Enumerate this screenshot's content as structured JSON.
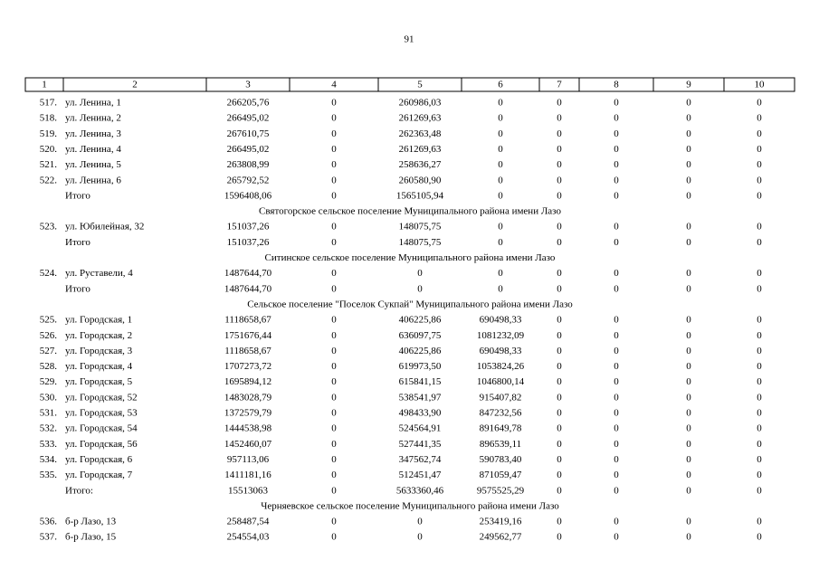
{
  "page_number": "91",
  "table": {
    "header": [
      "1",
      "2",
      "3",
      "4",
      "5",
      "6",
      "7",
      "8",
      "9",
      "10"
    ],
    "rows": [
      [
        "517.",
        "ул. Ленина, 1",
        "266205,76",
        "0",
        "260986,03",
        "0",
        "0",
        "0",
        "0",
        "0"
      ],
      [
        "518.",
        "ул. Ленина, 2",
        "266495,02",
        "0",
        "261269,63",
        "0",
        "0",
        "0",
        "0",
        "0"
      ],
      [
        "519.",
        "ул. Ленина, 3",
        "267610,75",
        "0",
        "262363,48",
        "0",
        "0",
        "0",
        "0",
        "0"
      ],
      [
        "520.",
        "ул. Ленина, 4",
        "266495,02",
        "0",
        "261269,63",
        "0",
        "0",
        "0",
        "0",
        "0"
      ],
      [
        "521.",
        "ул. Ленина, 5",
        "263808,99",
        "0",
        "258636,27",
        "0",
        "0",
        "0",
        "0",
        "0"
      ],
      [
        "522.",
        "ул. Ленина, 6",
        "265792,52",
        "0",
        "260580,90",
        "0",
        "0",
        "0",
        "0",
        "0"
      ],
      [
        null,
        "Итого",
        "1596408,06",
        "0",
        "1565105,94",
        "0",
        "0",
        "0",
        "0",
        "0"
      ],
      {
        "section": "Святогорское сельское поселение Муниципального района имени Лазо"
      },
      [
        "523.",
        "ул. Юбилейная, 32",
        "151037,26",
        "0",
        "148075,75",
        "0",
        "0",
        "0",
        "0",
        "0"
      ],
      [
        null,
        "Итого",
        "151037,26",
        "0",
        "148075,75",
        "0",
        "0",
        "0",
        "0",
        "0"
      ],
      {
        "section": "Ситинское сельское поселение Муниципального района имени Лазо"
      },
      [
        "524.",
        "ул. Руставели, 4",
        "1487644,70",
        "0",
        "0",
        "0",
        "0",
        "0",
        "0",
        "0"
      ],
      [
        null,
        "Итого",
        "1487644,70",
        "0",
        "0",
        "0",
        "0",
        "0",
        "0",
        "0"
      ],
      {
        "section": "Сельское поселение \"Поселок Сукпай\" Муниципального района имени Лазо"
      },
      [
        "525.",
        "ул. Городская, 1",
        "1118658,67",
        "0",
        "406225,86",
        "690498,33",
        "0",
        "0",
        "0",
        "0"
      ],
      [
        "526.",
        "ул. Городская, 2",
        "1751676,44",
        "0",
        "636097,75",
        "1081232,09",
        "0",
        "0",
        "0",
        "0"
      ],
      [
        "527.",
        "ул. Городская, 3",
        "1118658,67",
        "0",
        "406225,86",
        "690498,33",
        "0",
        "0",
        "0",
        "0"
      ],
      [
        "528.",
        "ул. Городская, 4",
        "1707273,72",
        "0",
        "619973,50",
        "1053824,26",
        "0",
        "0",
        "0",
        "0"
      ],
      [
        "529.",
        "ул. Городская, 5",
        "1695894,12",
        "0",
        "615841,15",
        "1046800,14",
        "0",
        "0",
        "0",
        "0"
      ],
      [
        "530.",
        "ул. Городская, 52",
        "1483028,79",
        "0",
        "538541,97",
        "915407,82",
        "0",
        "0",
        "0",
        "0"
      ],
      [
        "531.",
        "ул. Городская, 53",
        "1372579,79",
        "0",
        "498433,90",
        "847232,56",
        "0",
        "0",
        "0",
        "0"
      ],
      [
        "532.",
        "ул. Городская, 54",
        "1444538,98",
        "0",
        "524564,91",
        "891649,78",
        "0",
        "0",
        "0",
        "0"
      ],
      [
        "533.",
        "ул. Городская, 56",
        "1452460,07",
        "0",
        "527441,35",
        "896539,11",
        "0",
        "0",
        "0",
        "0"
      ],
      [
        "534.",
        "ул. Городская, 6",
        "957113,06",
        "0",
        "347562,74",
        "590783,40",
        "0",
        "0",
        "0",
        "0"
      ],
      [
        "535.",
        "ул. Городская, 7",
        "1411181,16",
        "0",
        "512451,47",
        "871059,47",
        "0",
        "0",
        "0",
        "0"
      ],
      [
        null,
        "Итого:",
        "15513063",
        "0",
        "5633360,46",
        "9575525,29",
        "0",
        "0",
        "0",
        "0"
      ],
      {
        "section": "Черняевское сельское поселение Муниципального района имени Лазо"
      },
      [
        "536.",
        "б-р Лазо, 13",
        "258487,54",
        "0",
        "0",
        "253419,16",
        "0",
        "0",
        "0",
        "0"
      ],
      [
        "537.",
        "б-р Лазо, 15",
        "254554,03",
        "0",
        "0",
        "249562,77",
        "0",
        "0",
        "0",
        "0"
      ]
    ]
  }
}
